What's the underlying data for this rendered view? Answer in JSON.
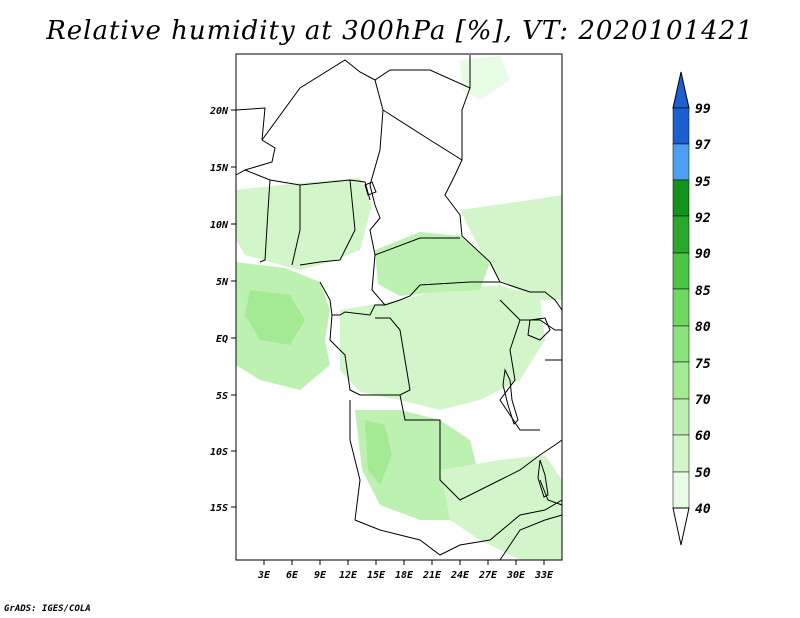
{
  "title": "Relative humidity at 300hPa [%], VT: 2020101421",
  "credit": "GrADS: IGES/COLA",
  "map": {
    "lat_labels": [
      "20N",
      "15N",
      "10N",
      "5N",
      "EQ",
      "5S",
      "10S",
      "15S"
    ],
    "lat_values": [
      20,
      15,
      10,
      5,
      0,
      -5,
      -10,
      -15
    ],
    "lon_labels": [
      "3E",
      "6E",
      "9E",
      "12E",
      "15E",
      "18E",
      "21E",
      "24E",
      "27E",
      "30E",
      "33E"
    ],
    "lon_values": [
      3,
      6,
      9,
      12,
      15,
      18,
      21,
      24,
      27,
      30,
      33
    ],
    "lat_range": [
      -20,
      25
    ],
    "lon_range": [
      0,
      35
    ]
  },
  "colorbar": {
    "labels": [
      "40",
      "50",
      "60",
      "70",
      "75",
      "80",
      "85",
      "90",
      "92",
      "95",
      "97",
      "99"
    ],
    "colors": [
      "#e8fbe4",
      "#d2f6ca",
      "#bdf1b1",
      "#a4ea95",
      "#8ae27a",
      "#6fd860",
      "#4cc444",
      "#2aa82c",
      "#13921c",
      "#4d9ff0",
      "#2e7fe0",
      "#1c5fd0"
    ]
  },
  "colors": {
    "border": "#000000",
    "map_frame": "#000000"
  }
}
